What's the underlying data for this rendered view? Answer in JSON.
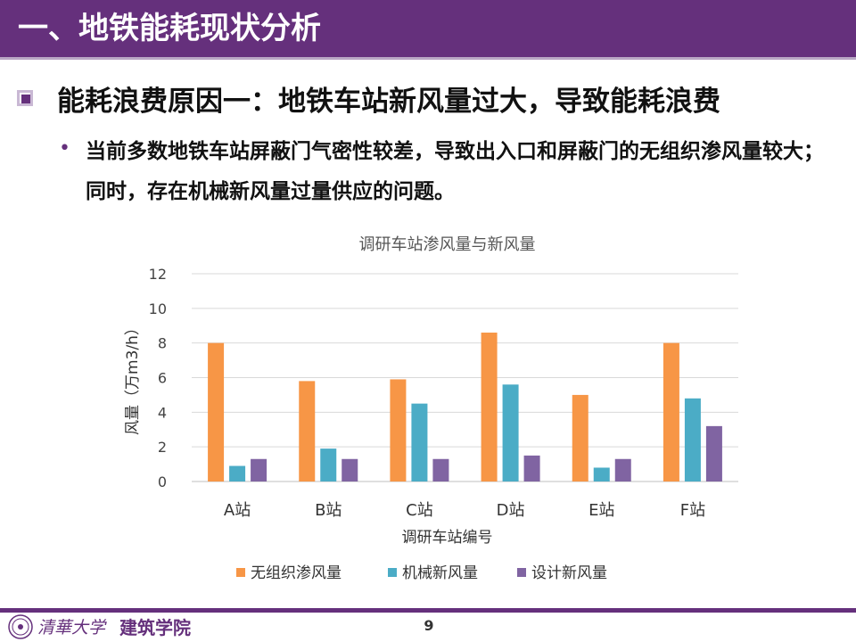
{
  "slide": {
    "title": "一、地铁能耗现状分析",
    "point1": "能耗浪费原因一：地铁车站新风量过大，导致能耗浪费",
    "point2": "当前多数地铁车站屏蔽门气密性较差，导致出入口和屏蔽门的无组织渗风量较大；同时，存在机械新风量过量供应的问题。",
    "bullet_glyph": "•",
    "theme_color": "#65307c"
  },
  "footer": {
    "logo_text": "清華大学",
    "school": "建筑学院",
    "page_number": "9"
  },
  "chart_data": {
    "type": "bar",
    "title": "调研车站渗风量与新风量",
    "xlabel": "调研车站编号",
    "ylabel": "风量（万m3/h）",
    "ylim": [
      0,
      12
    ],
    "yticks": [
      0,
      2,
      4,
      6,
      8,
      10,
      12
    ],
    "grid": true,
    "legend_position": "bottom",
    "categories": [
      "A站",
      "B站",
      "C站",
      "D站",
      "E站",
      "F站"
    ],
    "series": [
      {
        "name": "无组织渗风量",
        "color": "#f79646",
        "values": [
          8.0,
          5.8,
          5.9,
          8.6,
          5.0,
          8.0
        ]
      },
      {
        "name": "机械新风量",
        "color": "#4bacc6",
        "values": [
          0.9,
          1.9,
          4.5,
          5.6,
          0.8,
          4.8
        ]
      },
      {
        "name": "设计新风量",
        "color": "#8064a2",
        "values": [
          1.3,
          1.3,
          1.3,
          1.5,
          1.3,
          3.2
        ]
      }
    ]
  }
}
